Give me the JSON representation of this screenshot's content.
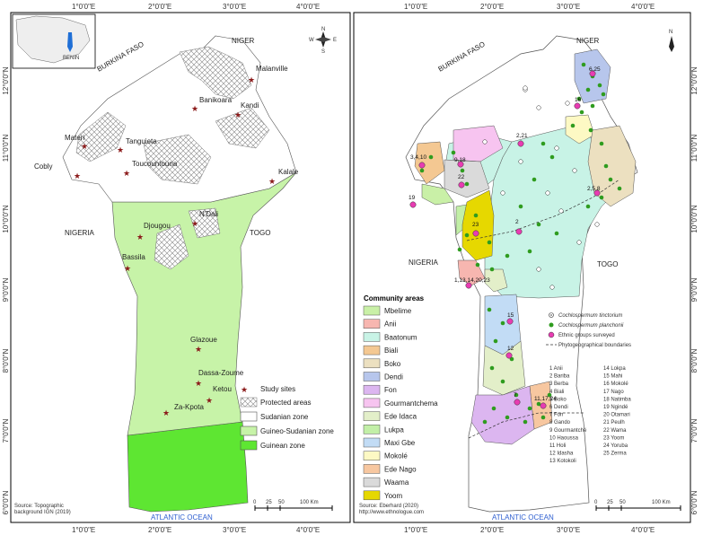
{
  "left_map": {
    "coords_top": [
      "1°0'0\"E",
      "2°0'0\"E",
      "3°0'0\"E",
      "4°0'0\"E"
    ],
    "coords_bottom": [
      "1°0'0\"E",
      "2°0'0\"E",
      "3°0'0\"E",
      "4°0'0\"E"
    ],
    "lat_left": [
      "12°0'0\"N",
      "11°0'0\"N",
      "10°0'0\"N",
      "9°0'0\"N",
      "8°0'0\"N",
      "7°0'0\"N",
      "6°0'0\"N"
    ],
    "countries": {
      "niger": "NIGER",
      "burkina": "BURKINA FASO",
      "nigeria": "NIGERIA",
      "togo": "TOGO",
      "ocean": "ATLANTIC OCEAN",
      "inset_benin": "BENIN"
    },
    "sites": [
      {
        "name": "Malanville"
      },
      {
        "name": "Banikoara"
      },
      {
        "name": "Kandi"
      },
      {
        "name": "Materi"
      },
      {
        "name": "Tanguieta"
      },
      {
        "name": "Cobly"
      },
      {
        "name": "Toucountouna"
      },
      {
        "name": "Kalale"
      },
      {
        "name": "N'Dali"
      },
      {
        "name": "Djougou"
      },
      {
        "name": "Bassila"
      },
      {
        "name": "Glazoue"
      },
      {
        "name": "Dassa-Zoume"
      },
      {
        "name": "Ketou"
      },
      {
        "name": "Za-Kpota"
      }
    ],
    "legend": {
      "study_sites": "Study sites",
      "protected": "Protected areas",
      "sudanian": "Sudanian zone",
      "guineo": "Guineo-Sudanian zone",
      "guinean": "Guinean zone"
    },
    "scale": {
      "t0": "0",
      "t1": "25",
      "t2": "50",
      "t3": "100 Km"
    },
    "source": [
      "Source: Topographic",
      "background IGN (2019)"
    ],
    "compass": {
      "n": "N",
      "s": "S",
      "e": "E",
      "w": "W"
    }
  },
  "right_map": {
    "coords_top": [
      "1°0'0\"E",
      "2°0'0\"E",
      "3°0'0\"E",
      "4°0'0\"E"
    ],
    "coords_bottom": [
      "1°0'0\"E",
      "2°0'0\"E",
      "3°0'0\"E",
      "4°0'0\"E"
    ],
    "lat_right": [
      "12°0'0\"N",
      "11°0'0\"N",
      "10°0'0\"N",
      "9°0'0\"N",
      "8°0'0\"N",
      "7°0'0\"N",
      "6°0'0\"N"
    ],
    "countries": {
      "niger": "NIGER",
      "burkina": "BURKINA FASO",
      "nigeria": "NIGERIA",
      "togo": "TOGO",
      "ocean": "ATLANTIC OCEAN"
    },
    "map_numbers": [
      "6,25",
      "16",
      "2,21",
      "3,4,10",
      "9,18",
      "22",
      "19",
      "2,5,8",
      "23",
      "2",
      "1,13,14,20,23",
      "15",
      "12",
      "11,17,24",
      "7"
    ],
    "community_title": "Community areas",
    "communities": [
      {
        "name": "Mbelime",
        "color": "#c9f0a7"
      },
      {
        "name": "Anii",
        "color": "#f7b6b0"
      },
      {
        "name": "Baatonum",
        "color": "#c8f3e6"
      },
      {
        "name": "Biali",
        "color": "#f4c892"
      },
      {
        "name": "Boko",
        "color": "#ece0c0"
      },
      {
        "name": "Dendi",
        "color": "#b7c6ec"
      },
      {
        "name": "Fon",
        "color": "#dcb6f0"
      },
      {
        "name": "Gourmantchema",
        "color": "#f7c4f0"
      },
      {
        "name": "Ede Idaca",
        "color": "#e3efc9"
      },
      {
        "name": "Lukpa",
        "color": "#c2efa7"
      },
      {
        "name": "Maxi Gbe",
        "color": "#c2dcf5"
      },
      {
        "name": "Mokolé",
        "color": "#fdf9c4"
      },
      {
        "name": "Ede Nago",
        "color": "#f7c7a0"
      },
      {
        "name": "Waama",
        "color": "#dadada"
      },
      {
        "name": "Yoom",
        "color": "#e6d800"
      }
    ],
    "symbols": {
      "tinctorium": "Cochlospermum tinctorium",
      "planchonii": "Cochlospermum planchonii",
      "ethnic": "Ethnic groups surveyed",
      "boundary": "Phytogeographical boundaries"
    },
    "ethnic_col1": [
      "1  Anii",
      "2  Bariba",
      "3  Berba",
      "4  Biali",
      "5  Boko",
      "6  Dendi",
      "7  Fon",
      "8  Gando",
      "9  Gourmantché",
      "10 Haoussa",
      "11 Holi",
      "12 Idasha",
      "13 Kotokoli"
    ],
    "ethnic_col2": [
      "14 Lokpa",
      "15 Mahi",
      "16 Mokolé",
      "17 Nago",
      "18 Natimba",
      "19 Ngindé",
      "20 Otamari",
      "21 Peulh",
      "22 Wama",
      "23 Yoom",
      "24 Yoruba",
      "25 Zerma"
    ],
    "scale": {
      "t0": "0",
      "t1": "25",
      "t2": "50",
      "t3": "100 Km"
    },
    "source": [
      "Source: Eberhard  (2020)",
      "http://www.ethnologue.com"
    ],
    "compass_n": "N"
  }
}
